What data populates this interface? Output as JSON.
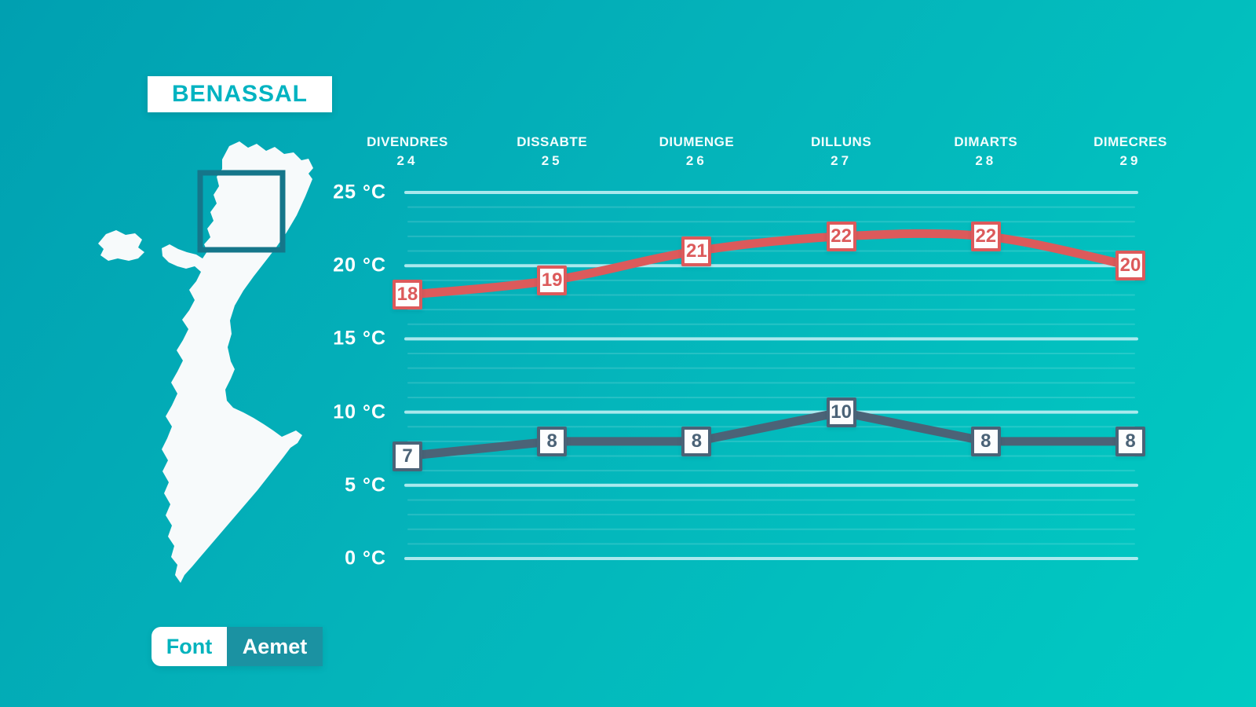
{
  "header": {
    "title": "BENASSAL"
  },
  "source": {
    "label": "Font",
    "value": "Aemet"
  },
  "map": {
    "name": "valencian-community-silhouette",
    "highlight": "benassal-area-box",
    "highlight_color": "#15768a",
    "fill_color": "#f7fafb"
  },
  "colors": {
    "background_start": "#00a0b1",
    "background_end": "#00cbc3",
    "max_line": "#dc5a5b",
    "min_line": "#4b6377",
    "major_grid": "#bdeef3",
    "title_text": "#00b3c1",
    "source_value_bg": "#1b92a2"
  },
  "chart_data": {
    "type": "line",
    "title": "BENASSAL",
    "categories": [
      {
        "day": "DIVENDRES",
        "date": "24"
      },
      {
        "day": "DISSABTE",
        "date": "25"
      },
      {
        "day": "DIUMENGE",
        "date": "26"
      },
      {
        "day": "DILLUNS",
        "date": "27"
      },
      {
        "day": "DIMARTS",
        "date": "28"
      },
      {
        "day": "DIMECRES",
        "date": "29"
      }
    ],
    "series": [
      {
        "name": "temperatura-maxima",
        "color": "#dc5a5b",
        "values": [
          18,
          19,
          21,
          22,
          22,
          20
        ],
        "line_style": "smooth"
      },
      {
        "name": "temperatura-minima",
        "color": "#4b6377",
        "values": [
          7,
          8,
          8,
          10,
          8,
          8
        ],
        "line_style": "straight"
      }
    ],
    "ylim": [
      0,
      25
    ],
    "yticks": [
      25,
      20,
      15,
      10,
      5,
      0
    ],
    "ytick_labels": [
      "25 °C",
      "20 °C",
      "15 °C",
      "10 °C",
      "5 °C",
      "0 °C"
    ],
    "minor_grid_step": 1,
    "unit": "°C",
    "grid": true,
    "legend": "none"
  }
}
